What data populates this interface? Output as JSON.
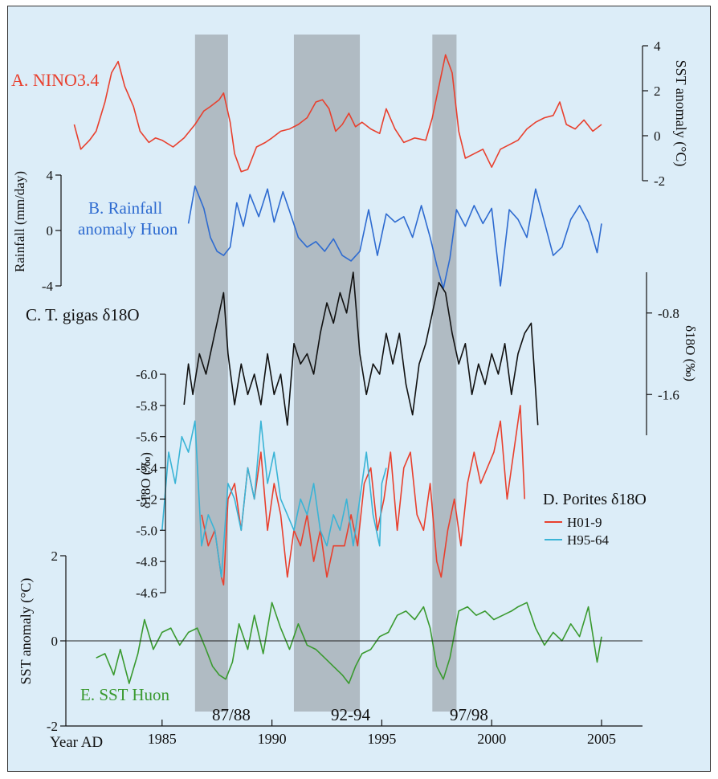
{
  "chart_data": {
    "type": "line",
    "x_axis": {
      "label": "Year AD",
      "range": [
        1980,
        2005
      ],
      "ticks": [
        "1985",
        "1990",
        "1995",
        "2000",
        "2005"
      ]
    },
    "shaded_periods": [
      {
        "label": "87/88",
        "start": 1986.5,
        "end": 1988.0
      },
      {
        "label": "92-94",
        "start": 1991.0,
        "end": 1994.0
      },
      {
        "label": "97/98",
        "start": 1997.3,
        "end": 1998.4
      }
    ],
    "panels": [
      {
        "id": "A",
        "label": "A. NINO3.4",
        "color": "#e8402e",
        "ylabel": "SST anomaly (°C)",
        "ylim": [
          -2,
          4
        ],
        "ticks": [
          "4",
          "2",
          "0",
          "-2"
        ],
        "x": [
          1981.0,
          1981.3,
          1981.7,
          1982.0,
          1982.4,
          1982.7,
          1983.0,
          1983.3,
          1983.7,
          1984.0,
          1984.4,
          1984.7,
          1985.0,
          1985.5,
          1986.0,
          1986.5,
          1986.9,
          1987.2,
          1987.6,
          1987.8,
          1988.1,
          1988.3,
          1988.6,
          1988.9,
          1989.3,
          1989.7,
          1990.0,
          1990.4,
          1990.8,
          1991.2,
          1991.6,
          1992.0,
          1992.3,
          1992.6,
          1992.9,
          1993.2,
          1993.5,
          1993.8,
          1994.1,
          1994.5,
          1994.9,
          1995.2,
          1995.6,
          1996.0,
          1996.5,
          1997.0,
          1997.3,
          1997.6,
          1997.9,
          1998.2,
          1998.5,
          1998.8,
          1999.2,
          1999.6,
          2000.0,
          2000.4,
          2000.8,
          2001.2,
          2001.6,
          2002.0,
          2002.4,
          2002.8,
          2003.1,
          2003.4,
          2003.8,
          2004.2,
          2004.6,
          2005.0
        ],
        "y": [
          0.5,
          -0.6,
          -0.2,
          0.2,
          1.5,
          2.8,
          3.3,
          2.2,
          1.3,
          0.2,
          -0.3,
          -0.1,
          -0.2,
          -0.5,
          -0.1,
          0.5,
          1.1,
          1.3,
          1.6,
          1.9,
          0.6,
          -0.8,
          -1.6,
          -1.5,
          -0.5,
          -0.3,
          -0.1,
          0.2,
          0.3,
          0.5,
          0.8,
          1.5,
          1.6,
          1.2,
          0.2,
          0.5,
          1.0,
          0.4,
          0.6,
          0.3,
          0.1,
          1.2,
          0.3,
          -0.3,
          -0.1,
          -0.2,
          0.8,
          2.2,
          3.6,
          2.8,
          0.2,
          -1.0,
          -0.8,
          -0.6,
          -1.4,
          -0.6,
          -0.4,
          -0.2,
          0.3,
          0.6,
          0.8,
          0.9,
          1.5,
          0.5,
          0.3,
          0.7,
          0.2,
          0.5
        ]
      },
      {
        "id": "B",
        "label_lines": [
          "B. Rainfall",
          "anomaly Huon"
        ],
        "color": "#2e6bd0",
        "ylabel": "Rainfall (mm/day)",
        "ylim": [
          -4,
          4
        ],
        "ticks": [
          "4",
          "0",
          "-4"
        ],
        "x": [
          1986.2,
          1986.5,
          1986.9,
          1987.2,
          1987.5,
          1987.8,
          1988.1,
          1988.4,
          1988.7,
          1989.0,
          1989.4,
          1989.8,
          1990.1,
          1990.5,
          1990.8,
          1991.2,
          1991.6,
          1992.0,
          1992.4,
          1992.8,
          1993.2,
          1993.6,
          1994.0,
          1994.4,
          1994.8,
          1995.2,
          1995.6,
          1996.0,
          1996.4,
          1996.8,
          1997.2,
          1997.5,
          1997.8,
          1998.1,
          1998.4,
          1998.8,
          1999.2,
          1999.6,
          2000.0,
          2000.4,
          2000.8,
          2001.2,
          2001.6,
          2002.0,
          2002.4,
          2002.8,
          2003.2,
          2003.6,
          2004.0,
          2004.4,
          2004.8,
          2005.0
        ],
        "y": [
          0.5,
          3.2,
          1.6,
          -0.5,
          -1.5,
          -1.8,
          -1.2,
          2.0,
          0.3,
          2.6,
          1.0,
          3.0,
          0.6,
          2.8,
          1.4,
          -0.5,
          -1.2,
          -0.8,
          -1.5,
          -0.6,
          -1.8,
          -2.2,
          -1.5,
          1.5,
          -1.8,
          1.2,
          0.6,
          1.0,
          -0.5,
          1.8,
          -0.5,
          -2.5,
          -4.2,
          -2.0,
          1.5,
          0.3,
          1.8,
          0.5,
          1.6,
          -4.0,
          1.5,
          0.8,
          -0.5,
          3.0,
          0.6,
          -1.8,
          -1.2,
          0.8,
          1.8,
          0.6,
          -1.6,
          0.5
        ]
      },
      {
        "id": "C",
        "label": "C. T. gigas δ18O",
        "color": "#111111",
        "ylabel": "δ18O (‰)",
        "ylim": [
          -2.0,
          -0.4
        ],
        "ticks": [
          "-1.6",
          "-0.8"
        ],
        "x": [
          1986.0,
          1986.2,
          1986.4,
          1986.7,
          1987.0,
          1987.3,
          1987.6,
          1987.8,
          1988.0,
          1988.3,
          1988.6,
          1988.9,
          1989.2,
          1989.5,
          1989.8,
          1990.1,
          1990.4,
          1990.7,
          1991.0,
          1991.3,
          1991.6,
          1991.9,
          1992.2,
          1992.5,
          1992.8,
          1993.1,
          1993.4,
          1993.7,
          1994.0,
          1994.3,
          1994.6,
          1994.9,
          1995.2,
          1995.5,
          1995.8,
          1996.1,
          1996.4,
          1996.7,
          1997.0,
          1997.3,
          1997.6,
          1997.9,
          1998.2,
          1998.5,
          1998.8,
          1999.1,
          1999.4,
          1999.7,
          2000.0,
          2000.3,
          2000.6,
          2000.9,
          2001.2,
          2001.5,
          2001.8,
          2002.1
        ],
        "y": [
          -1.7,
          -1.3,
          -1.6,
          -1.2,
          -1.4,
          -1.1,
          -0.8,
          -0.6,
          -1.2,
          -1.7,
          -1.3,
          -1.6,
          -1.4,
          -1.7,
          -1.2,
          -1.6,
          -1.4,
          -1.9,
          -1.1,
          -1.3,
          -1.2,
          -1.4,
          -1.0,
          -0.7,
          -0.9,
          -0.6,
          -0.8,
          -0.4,
          -1.2,
          -1.6,
          -1.3,
          -1.4,
          -1.0,
          -1.3,
          -1.0,
          -1.5,
          -1.8,
          -1.3,
          -1.1,
          -0.8,
          -0.5,
          -0.6,
          -1.0,
          -1.3,
          -1.1,
          -1.6,
          -1.3,
          -1.5,
          -1.2,
          -1.4,
          -1.1,
          -1.6,
          -1.2,
          -1.0,
          -0.9,
          -1.9
        ]
      },
      {
        "id": "D",
        "label": "D. Porites δ18O",
        "color": "#e8402e",
        "ylabel": "δ18O (‰)",
        "ylim": [
          -4.6,
          -6.0
        ],
        "ticks": [
          "-6.0",
          "-5.8",
          "-5.6",
          "-5.4",
          "-5.2",
          "-5.0",
          "-4.8",
          "-4.6"
        ],
        "series": [
          {
            "name": "H01-9",
            "color": "#e8402e",
            "x": [
              1986.8,
              1987.1,
              1987.4,
              1987.7,
              1987.8,
              1988.0,
              1988.3,
              1988.6,
              1988.9,
              1989.2,
              1989.5,
              1989.8,
              1990.1,
              1990.4,
              1990.7,
              1991.0,
              1991.3,
              1991.6,
              1991.9,
              1992.2,
              1992.5,
              1992.8,
              1993.0,
              1993.3,
              1993.6,
              1993.9,
              1994.2,
              1994.5,
              1994.8,
              1995.1,
              1995.4,
              1995.7,
              1996.0,
              1996.3,
              1996.6,
              1996.9,
              1997.2,
              1997.5,
              1997.7,
              1998.0,
              1998.3,
              1998.6,
              1998.9,
              1999.2,
              1999.5,
              1999.8,
              2000.1,
              2000.4,
              2000.7,
              2001.0,
              2001.3,
              2001.5
            ],
            "y": [
              -5.1,
              -4.9,
              -5.0,
              -4.7,
              -4.65,
              -5.2,
              -5.3,
              -5.0,
              -5.4,
              -5.2,
              -5.5,
              -5.0,
              -5.3,
              -5.1,
              -4.7,
              -5.0,
              -4.9,
              -5.1,
              -4.8,
              -5.0,
              -4.7,
              -4.9,
              -4.9,
              -4.9,
              -5.1,
              -4.9,
              -5.3,
              -5.4,
              -5.0,
              -5.2,
              -5.5,
              -5.0,
              -5.4,
              -5.5,
              -5.1,
              -5.0,
              -5.3,
              -4.8,
              -4.7,
              -5.0,
              -5.2,
              -4.9,
              -5.3,
              -5.5,
              -5.3,
              -5.4,
              -5.5,
              -5.7,
              -5.2,
              -5.5,
              -5.8,
              -5.2
            ]
          },
          {
            "name": "H95-64",
            "color": "#3ab4d6",
            "x": [
              1985.0,
              1985.3,
              1985.6,
              1985.9,
              1986.2,
              1986.5,
              1986.8,
              1987.1,
              1987.4,
              1987.7,
              1988.0,
              1988.3,
              1988.6,
              1988.9,
              1989.2,
              1989.5,
              1989.8,
              1990.1,
              1990.4,
              1990.7,
              1991.0,
              1991.3,
              1991.6,
              1991.9,
              1992.2,
              1992.5,
              1992.8,
              1993.1,
              1993.4,
              1993.7,
              1994.0,
              1994.3,
              1994.6,
              1994.9,
              1995.0,
              1995.2
            ],
            "y": [
              -5.0,
              -5.5,
              -5.3,
              -5.6,
              -5.5,
              -5.7,
              -4.9,
              -5.1,
              -5.0,
              -4.7,
              -5.3,
              -5.2,
              -5.0,
              -5.4,
              -5.2,
              -5.7,
              -5.3,
              -5.5,
              -5.2,
              -5.1,
              -5.0,
              -5.2,
              -5.1,
              -5.3,
              -5.0,
              -4.9,
              -5.1,
              -5.0,
              -5.2,
              -4.9,
              -5.2,
              -5.5,
              -5.1,
              -4.9,
              -5.3,
              -5.4
            ]
          }
        ]
      },
      {
        "id": "E",
        "label": "E. SST Huon",
        "color": "#3a9a30",
        "ylabel": "SST anomaly (°C)",
        "ylim": [
          -2,
          2
        ],
        "ticks": [
          "2",
          "0",
          "-2"
        ],
        "x": [
          1982.0,
          1982.4,
          1982.8,
          1983.1,
          1983.5,
          1983.9,
          1984.2,
          1984.6,
          1985.0,
          1985.4,
          1985.8,
          1986.2,
          1986.6,
          1987.0,
          1987.3,
          1987.6,
          1987.9,
          1988.2,
          1988.5,
          1988.9,
          1989.2,
          1989.6,
          1990.0,
          1990.4,
          1990.8,
          1991.2,
          1991.6,
          1992.0,
          1992.4,
          1992.8,
          1993.2,
          1993.5,
          1993.8,
          1994.1,
          1994.5,
          1994.9,
          1995.3,
          1995.7,
          1996.1,
          1996.5,
          1996.9,
          1997.2,
          1997.5,
          1997.8,
          1998.1,
          1998.5,
          1998.9,
          1999.3,
          1999.7,
          2000.1,
          2000.5,
          2000.9,
          2001.2,
          2001.6,
          2002.0,
          2002.4,
          2002.8,
          2003.2,
          2003.6,
          2004.0,
          2004.4,
          2004.8,
          2005.0
        ],
        "y": [
          -0.4,
          -0.3,
          -0.8,
          -0.2,
          -1.0,
          -0.3,
          0.5,
          -0.2,
          0.2,
          0.3,
          -0.1,
          0.2,
          0.3,
          -0.2,
          -0.6,
          -0.8,
          -0.9,
          -0.5,
          0.4,
          -0.2,
          0.6,
          -0.3,
          0.9,
          0.3,
          -0.2,
          0.4,
          -0.1,
          -0.2,
          -0.4,
          -0.6,
          -0.8,
          -1.0,
          -0.6,
          -0.3,
          -0.2,
          0.1,
          0.2,
          0.6,
          0.7,
          0.5,
          0.8,
          0.3,
          -0.6,
          -0.9,
          -0.4,
          0.7,
          0.8,
          0.6,
          0.7,
          0.5,
          0.6,
          0.7,
          0.8,
          0.9,
          0.3,
          -0.1,
          0.2,
          0.0,
          0.4,
          0.1,
          0.8,
          -0.5,
          0.1
        ]
      }
    ]
  }
}
